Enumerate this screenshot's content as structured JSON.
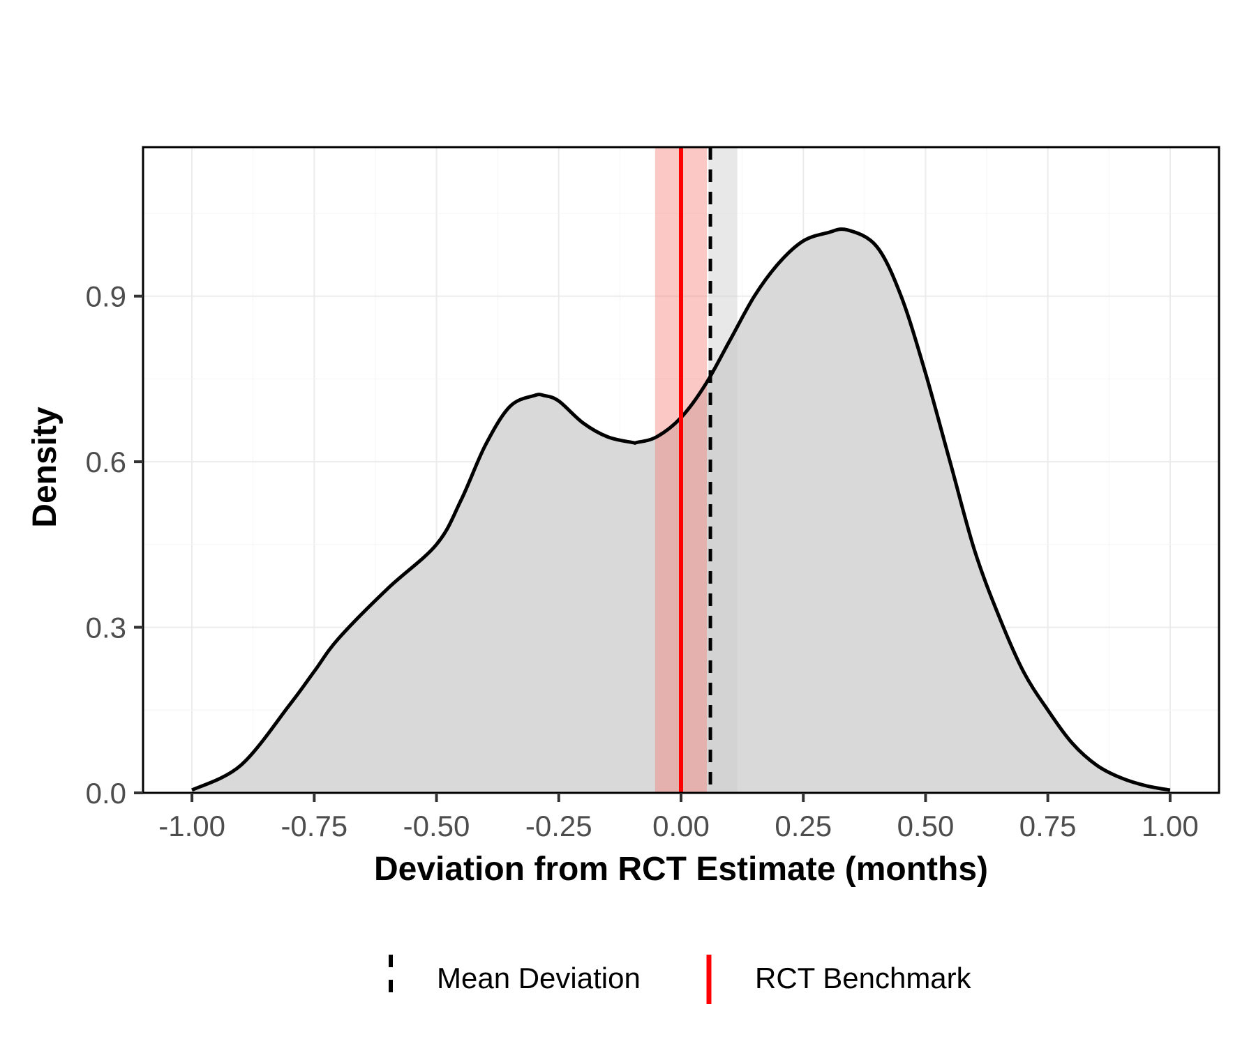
{
  "chart_data": {
    "type": "area",
    "title": "",
    "xlabel": "Deviation from RCT Estimate (months)",
    "ylabel": "Density",
    "xlim": [
      -1.1,
      1.1
    ],
    "ylim": [
      0,
      1.17
    ],
    "x_ticks": [
      -1.0,
      -0.75,
      -0.5,
      -0.25,
      0.0,
      0.25,
      0.5,
      0.75,
      1.0
    ],
    "x_tick_labels": [
      "-1.00",
      "-0.75",
      "-0.50",
      "-0.25",
      "0.00",
      "0.25",
      "0.50",
      "0.75",
      "1.00"
    ],
    "y_ticks": [
      0.0,
      0.3,
      0.6,
      0.9
    ],
    "y_tick_labels": [
      "0.0",
      "0.3",
      "0.6",
      "0.9"
    ],
    "grid": true,
    "series": [
      {
        "name": "density",
        "x": [
          -1.0,
          -0.9,
          -0.8,
          -0.75,
          -0.7,
          -0.6,
          -0.5,
          -0.45,
          -0.4,
          -0.35,
          -0.3,
          -0.28,
          -0.25,
          -0.2,
          -0.15,
          -0.1,
          -0.09,
          -0.05,
          0.0,
          0.05,
          0.1,
          0.15,
          0.2,
          0.25,
          0.3,
          0.34,
          0.4,
          0.45,
          0.5,
          0.55,
          0.6,
          0.65,
          0.7,
          0.75,
          0.8,
          0.85,
          0.9,
          0.95,
          1.0
        ],
        "y": [
          0.005,
          0.05,
          0.16,
          0.22,
          0.28,
          0.37,
          0.45,
          0.53,
          0.63,
          0.7,
          0.72,
          0.72,
          0.71,
          0.67,
          0.645,
          0.635,
          0.635,
          0.645,
          0.68,
          0.74,
          0.82,
          0.9,
          0.96,
          1.0,
          1.015,
          1.02,
          0.99,
          0.9,
          0.76,
          0.6,
          0.44,
          0.32,
          0.22,
          0.15,
          0.09,
          0.05,
          0.027,
          0.013,
          0.005
        ]
      }
    ],
    "vertical_lines": [
      {
        "name": "Mean Deviation",
        "x": 0.06,
        "ci": [
          0.056,
          0.115
        ],
        "color": "#000000",
        "band_color": "#cccccc",
        "style": "dashed"
      },
      {
        "name": "RCT Benchmark",
        "x": 0.0,
        "ci": [
          -0.053,
          0.053
        ],
        "color": "#ff0000",
        "band_color": "#f8766d",
        "style": "solid"
      }
    ],
    "legend": {
      "position": "bottom",
      "entries": [
        {
          "label": "Mean Deviation",
          "style": "dashed",
          "color": "#000000"
        },
        {
          "label": "RCT Benchmark",
          "style": "solid",
          "color": "#ff0000"
        }
      ]
    }
  }
}
